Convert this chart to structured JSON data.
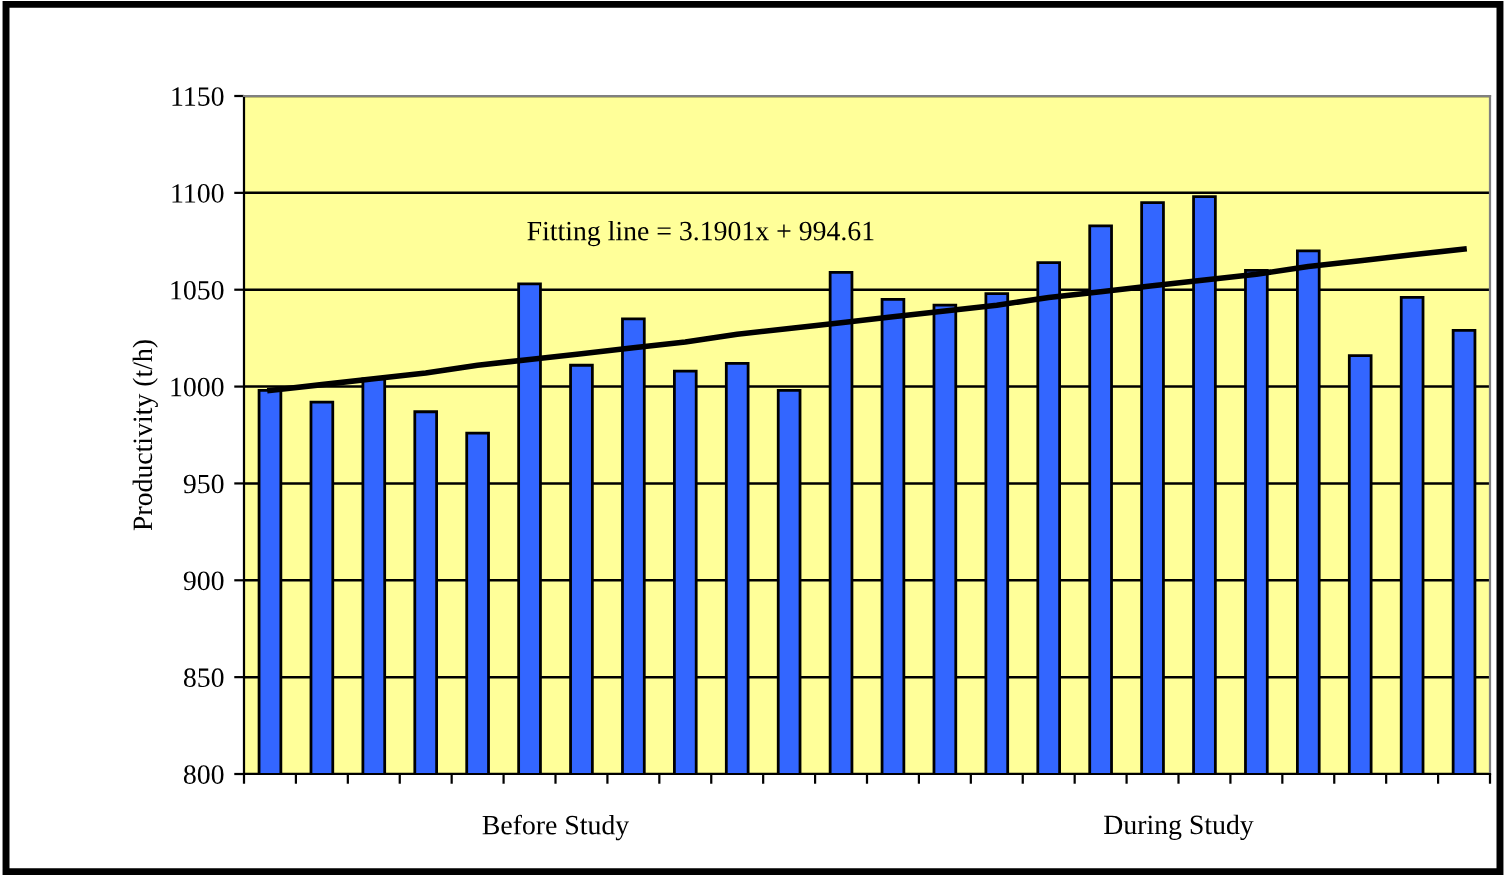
{
  "chart_data": {
    "type": "bar",
    "ylabel": "Productivity (t/h)",
    "categories": [
      null,
      null,
      null,
      null,
      null,
      null,
      null,
      null,
      null,
      null,
      null,
      null,
      null,
      null,
      null,
      null,
      null,
      null,
      null,
      null,
      null,
      null,
      null,
      null
    ],
    "series": [
      {
        "color": "#3366ff",
        "values": [
          998,
          992,
          1004,
          987,
          976,
          1053,
          1011,
          1035,
          1008,
          1012,
          998,
          1059,
          1045,
          1042,
          1048,
          1064,
          1083,
          1095,
          1098,
          1060,
          1070,
          1016,
          1046,
          1029
        ]
      },
      {
        "type": "line",
        "color": "#000000",
        "values": [
          998,
          1001,
          1004,
          1007,
          1011,
          1014,
          1017,
          1020,
          1023,
          1027,
          1030,
          1033,
          1036,
          1039,
          1042,
          1046,
          1049,
          1052,
          1055,
          1058,
          1062,
          1065,
          1068,
          1071
        ]
      }
    ],
    "annotations": [
      "Fitting line = 3.1901x + 994.61",
      "Before Study",
      "During Study"
    ],
    "ylim": [
      800,
      1150
    ],
    "yticks": [
      800,
      850,
      900,
      950,
      1000,
      1050,
      1100,
      1150
    ],
    "grid": "y",
    "legend": false
  }
}
